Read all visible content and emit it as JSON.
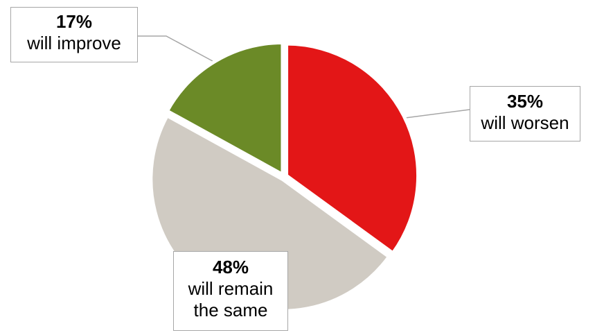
{
  "chart_data": {
    "type": "pie",
    "slices": [
      {
        "value": 35,
        "pct_label": "35%",
        "label": "will worsen",
        "color": "#e31617"
      },
      {
        "value": 48,
        "pct_label": "48%",
        "label": "will remain the same",
        "color": "#d0cbc3"
      },
      {
        "value": 17,
        "pct_label": "17%",
        "label": "will improve",
        "color": "#6b8a27"
      }
    ],
    "start_angle": "12 o'clock",
    "direction": "clockwise",
    "slice_separator_color": "#ffffff",
    "leader_line_color": "#a6a6a6",
    "legend": "none"
  }
}
